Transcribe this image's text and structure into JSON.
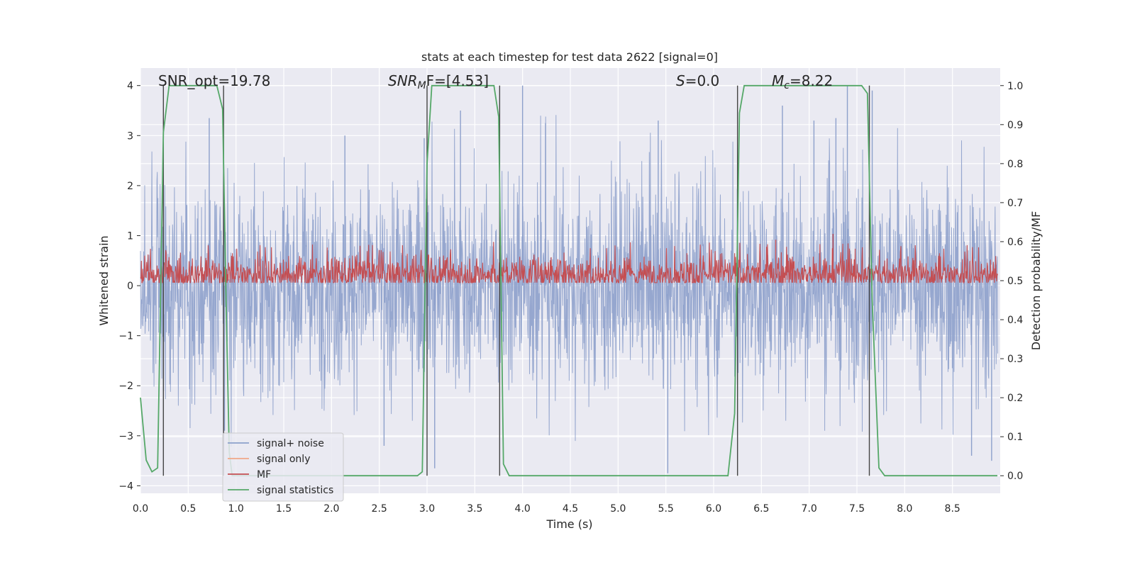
{
  "chart_data": {
    "type": "line",
    "title": "stats at each timestep for test data 2622 [signal=0]",
    "xlabel": "Time (s)",
    "ylabel_left": "Whitened strain",
    "ylabel_right": "Detection probability/MF",
    "xlim": [
      0.0,
      9.0
    ],
    "ylim_left": [
      -4.15,
      4.35
    ],
    "ylim_right": [
      -0.045,
      1.045
    ],
    "x_ticks": [
      0.0,
      0.5,
      1.0,
      1.5,
      2.0,
      2.5,
      3.0,
      3.5,
      4.0,
      4.5,
      5.0,
      5.5,
      6.0,
      6.5,
      7.0,
      7.5,
      8.0,
      8.5
    ],
    "x_tick_labels": [
      "0.0",
      "0.5",
      "1.0",
      "1.5",
      "2.0",
      "2.5",
      "3.0",
      "3.5",
      "4.0",
      "4.5",
      "5.0",
      "5.5",
      "6.0",
      "6.5",
      "7.0",
      "7.5",
      "8.0",
      "8.5"
    ],
    "y_left_ticks": [
      -4,
      -3,
      -2,
      -1,
      0,
      1,
      2,
      3,
      4
    ],
    "y_left_tick_labels": [
      "−4",
      "−3",
      "−2",
      "−1",
      "0",
      "1",
      "2",
      "3",
      "4"
    ],
    "y_right_ticks": [
      0.0,
      0.1,
      0.2,
      0.3,
      0.4,
      0.5,
      0.6,
      0.7,
      0.8,
      0.9,
      1.0
    ],
    "y_right_tick_labels": [
      "0.0",
      "0.1",
      "0.2",
      "0.3",
      "0.4",
      "0.5",
      "0.6",
      "0.7",
      "0.8",
      "0.9",
      "1.0"
    ],
    "grid": true,
    "legend_position": "lower-left",
    "legend": [
      {
        "label": "signal+ noise",
        "color": "#8da0cb"
      },
      {
        "label": "signal only",
        "color": "#f0a888"
      },
      {
        "label": "MF",
        "color": "#c44e52"
      },
      {
        "label": "signal statistics",
        "color": "#55a868"
      }
    ],
    "annotations": {
      "snr_opt": "SNR_opt=19.78",
      "snr_mf_sym": "SNR",
      "snr_mf_sub": "M",
      "snr_mf_rest": "F=[4.53]",
      "s_sym": "S",
      "s_rest": "=0.0",
      "mc_sym": "M",
      "mc_sub": "c",
      "mc_rest": "=8.22"
    },
    "series": [
      {
        "name": "signal+ noise",
        "axis": "left",
        "color": "#8da0cb",
        "description": "dense noise trace spanning 0-9 s",
        "envelope_min": [
          -2.4,
          -3.3,
          -2.6,
          -2.5,
          -2.6,
          -2.7,
          -2.4,
          -2.5,
          -3.1,
          -3.6,
          -3.6,
          -3.2,
          -2.8,
          -3.2,
          -2.9,
          -3.2,
          -2.9,
          -3.4
        ],
        "envelope_max": [
          2.9,
          3.3,
          2.9,
          2.6,
          2.7,
          2.9,
          3.5,
          3.2,
          3.6,
          3.3,
          3.3,
          3.1,
          3.1,
          3.3,
          3.3,
          3.5,
          3.3,
          3.1
        ],
        "peaks": [
          {
            "x": 0.72,
            "y": 3.35
          },
          {
            "x": 2.14,
            "y": 3.0
          },
          {
            "x": 2.97,
            "y": 2.95
          },
          {
            "x": 3.35,
            "y": 3.5
          },
          {
            "x": 4.0,
            "y": 4.0
          },
          {
            "x": 4.24,
            "y": 3.25
          },
          {
            "x": 5.42,
            "y": 3.3
          },
          {
            "x": 6.72,
            "y": 3.6
          },
          {
            "x": 7.05,
            "y": 3.3
          },
          {
            "x": 7.28,
            "y": 3.35
          },
          {
            "x": 7.4,
            "y": 4.0
          },
          {
            "x": 7.66,
            "y": 3.9
          },
          {
            "x": 5.52,
            "y": -3.75
          },
          {
            "x": 0.88,
            "y": -2.9
          },
          {
            "x": 2.55,
            "y": -3.2
          },
          {
            "x": 3.08,
            "y": -3.65
          },
          {
            "x": 8.91,
            "y": -3.5
          },
          {
            "x": 8.7,
            "y": -3.4
          }
        ]
      },
      {
        "name": "MF",
        "axis": "right",
        "color": "#c44e52",
        "description": "matched-filter output fluctuating around 0.52",
        "baseline": 0.515,
        "band_low": 0.495,
        "band_high": 0.61,
        "peaks": [
          {
            "x": 6.65,
            "y": 0.605
          },
          {
            "x": 7.25,
            "y": 0.62
          }
        ]
      },
      {
        "name": "signal statistics",
        "axis": "right",
        "color": "#55a868",
        "x": [
          0.0,
          0.06,
          0.12,
          0.18,
          0.24,
          0.3,
          0.36,
          0.8,
          0.86,
          0.9,
          0.93,
          0.96,
          1.0,
          2.9,
          2.95,
          3.0,
          3.05,
          3.1,
          3.7,
          3.75,
          3.8,
          3.86,
          3.92,
          6.15,
          6.22,
          6.27,
          6.32,
          6.38,
          7.55,
          7.61,
          7.66,
          7.73,
          7.79,
          7.85,
          8.97
        ],
        "y": [
          0.2,
          0.04,
          0.01,
          0.02,
          0.88,
          1.0,
          1.0,
          1.0,
          0.94,
          0.4,
          0.06,
          0.0,
          0.0,
          0.0,
          0.01,
          0.8,
          1.0,
          1.0,
          1.0,
          0.92,
          0.03,
          0.0,
          0.0,
          0.0,
          0.16,
          0.93,
          1.0,
          1.0,
          1.0,
          0.98,
          0.45,
          0.02,
          0.0,
          0.0,
          0.0
        ]
      },
      {
        "name": "boundary markers",
        "axis": "right",
        "color": "#444444",
        "x_positions": [
          0.24,
          0.87,
          3.0,
          3.76,
          6.25,
          7.63
        ],
        "y_range": [
          0.0,
          1.0
        ]
      }
    ]
  }
}
